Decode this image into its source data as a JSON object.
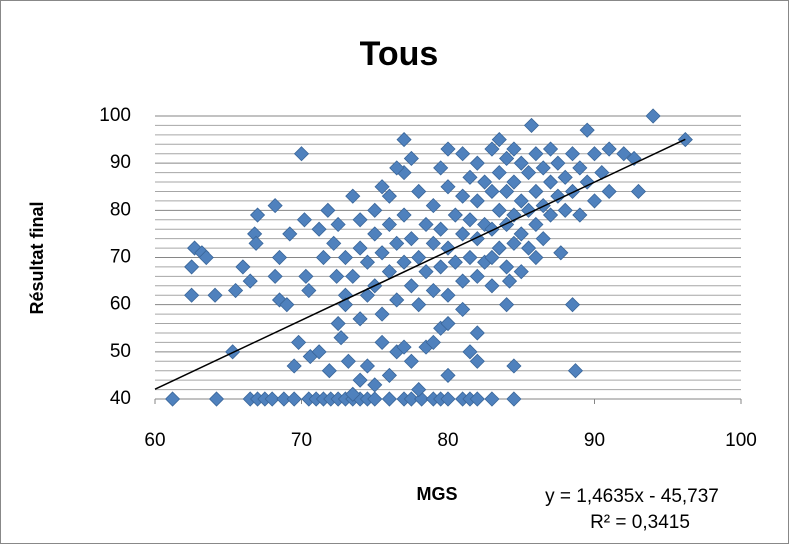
{
  "chart_data": {
    "type": "scatter",
    "title": "Tous",
    "x_label": "MGS",
    "y_label": "Résultat final",
    "color": "#4f81bd",
    "xlim": [
      60,
      100
    ],
    "xticks": [
      60,
      70,
      80,
      90,
      100
    ],
    "ylim": [
      40,
      100
    ],
    "yticks": [
      40,
      50,
      60,
      70,
      80,
      90,
      100
    ],
    "yminor": [
      42,
      44,
      46,
      48,
      52,
      54,
      56,
      58,
      62,
      64,
      66,
      68,
      72,
      74,
      76,
      78,
      82,
      84,
      86,
      88,
      92,
      94,
      96,
      98
    ],
    "grid": true,
    "trendline": {
      "slope": 1.4635,
      "intercept": -45.737,
      "x_range": [
        60,
        96.2
      ],
      "equation": "y = 1,4635x - 45,737",
      "r2_label": "R² = 0,3415",
      "r2": 0.3415
    },
    "x": [
      61.2,
      64.2,
      66.5,
      67,
      67.5,
      68,
      68.8,
      69.5,
      70.5,
      71,
      71.5,
      72,
      72.5,
      73,
      73.5,
      74,
      74.5,
      75,
      76,
      77,
      77.5,
      78.2,
      79,
      79.5,
      80,
      81,
      81.5,
      82,
      83,
      84.5,
      62.5,
      62.7,
      63.2,
      63.5,
      62.5,
      64.1,
      65.3,
      65.5,
      66,
      66.5,
      66.8,
      66.9,
      67,
      68.2,
      68.2,
      68.5,
      68.5,
      69,
      69.2,
      69.5,
      69.8,
      70,
      70.2,
      70.3,
      70.5,
      70.6,
      71.2,
      71.2,
      71.5,
      71.8,
      71.9,
      72.2,
      72.4,
      72.5,
      72.7,
      73,
      73.2,
      73.5,
      73.5,
      74,
      74.5,
      75,
      75.5,
      76,
      76.5,
      77,
      77.5,
      78,
      78.5,
      79,
      80,
      79.5,
      80,
      81,
      81.5,
      82,
      82,
      84,
      84.5,
      84.2,
      83,
      73.5,
      74,
      74,
      74.5,
      74.5,
      75,
      75,
      75,
      75.5,
      75.5,
      76,
      76,
      76,
      76.5,
      76.5,
      77,
      77,
      77,
      77,
      77.5,
      77.5,
      78,
      78,
      78,
      78.5,
      78.5,
      79,
      79,
      79,
      79.5,
      79.5,
      79.5,
      80,
      80,
      80,
      80,
      80.5,
      80.5,
      81,
      81,
      81,
      81,
      81.5,
      81.5,
      81.5,
      82,
      82,
      82,
      82,
      82.5,
      82.5,
      82.5,
      83,
      83,
      83,
      83,
      83.5,
      83.5,
      83.5,
      83.5,
      84,
      84,
      84,
      84,
      84.5,
      84.5,
      84.5,
      84.5,
      85,
      85,
      85,
      85,
      85.5,
      85.5,
      85.5,
      85.7,
      86,
      86,
      86,
      86,
      86.5,
      86.5,
      86.5,
      87,
      87,
      87,
      87.5,
      87.5,
      87.7,
      88,
      88,
      88.5,
      88.5,
      88.5,
      88.7,
      89,
      89,
      89.5,
      89.5,
      90,
      90,
      90.5,
      91,
      91,
      92,
      92.7,
      93,
      94,
      96.2,
      73,
      74,
      75.5,
      76.5,
      77.5,
      72.5,
      73
    ],
    "values": [
      40,
      40,
      40,
      40,
      40,
      40,
      40,
      40,
      40,
      40,
      40,
      40,
      40,
      40,
      40,
      40,
      40,
      40,
      40,
      40,
      40,
      40,
      40,
      40,
      40,
      40,
      40,
      40,
      40,
      40,
      68,
      72,
      71,
      70,
      62,
      62,
      50,
      63,
      68,
      65,
      75,
      73,
      79,
      81,
      66,
      70,
      61,
      60,
      75,
      47,
      52,
      92,
      78,
      66,
      63,
      49,
      50,
      76,
      70,
      80,
      46,
      73,
      66,
      56,
      53,
      62,
      48,
      83,
      41,
      44,
      47,
      43,
      52,
      45,
      50,
      51,
      48,
      42,
      51,
      52,
      45,
      55,
      56,
      59,
      50,
      54,
      48,
      60,
      47,
      65,
      64,
      66,
      72,
      78,
      62,
      69,
      75,
      80,
      64,
      71,
      58,
      77,
      83,
      67,
      73,
      61,
      88,
      79,
      69,
      95,
      74,
      64,
      84,
      70,
      60,
      77,
      67,
      81,
      73,
      63,
      89,
      76,
      68,
      93,
      85,
      72,
      62,
      79,
      69,
      92,
      83,
      75,
      65,
      87,
      78,
      70,
      90,
      82,
      74,
      66,
      86,
      77,
      69,
      93,
      84,
      76,
      70,
      95,
      88,
      80,
      72,
      91,
      84,
      77,
      68,
      93,
      86,
      79,
      73,
      90,
      82,
      75,
      67,
      88,
      80,
      72,
      98,
      92,
      84,
      77,
      70,
      89,
      81,
      74,
      93,
      86,
      79,
      90,
      83,
      71,
      87,
      80,
      92,
      84,
      60,
      46,
      79,
      89,
      97,
      86,
      92,
      82,
      88,
      93,
      84,
      92,
      91,
      84,
      100,
      95,
      60,
      57,
      85,
      89,
      91,
      77,
      70
    ]
  }
}
